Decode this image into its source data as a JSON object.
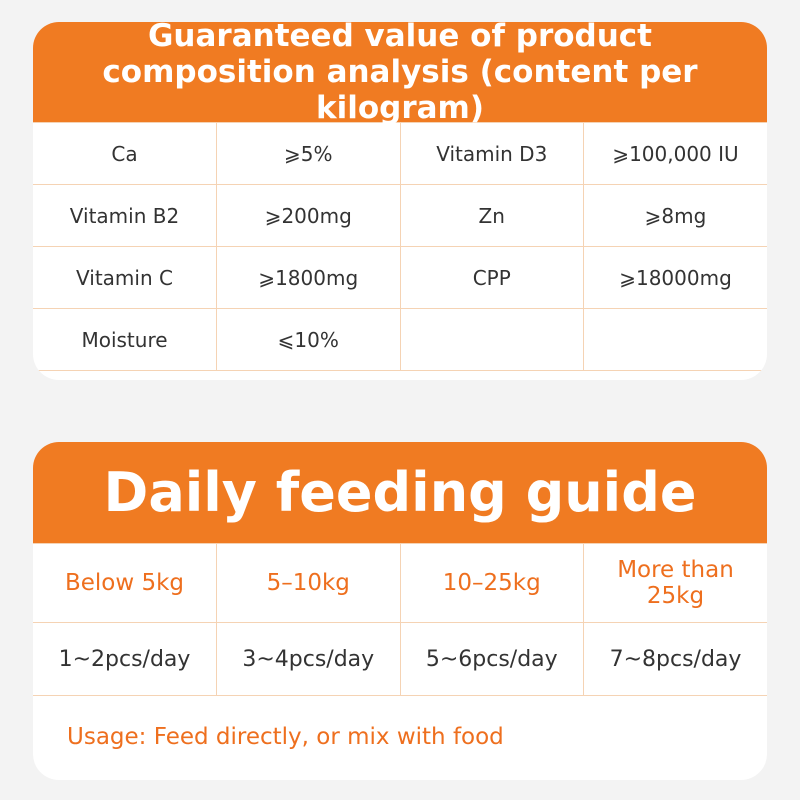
{
  "composition": {
    "title": "Guaranteed value of product composition analysis (content per kilogram)",
    "rows": [
      [
        "Ca",
        "⩾5%",
        "Vitamin D3",
        "⩾100,000 IU"
      ],
      [
        "Vitamin B2",
        "⩾200mg",
        "Zn",
        "⩾8mg"
      ],
      [
        "Vitamin C",
        "⩾1800mg",
        "CPP",
        "⩾18000mg"
      ],
      [
        "Moisture",
        "⩽10%"
      ]
    ]
  },
  "feeding": {
    "title": "Daily feeding guide",
    "header": [
      "Below 5kg",
      "5–10kg",
      "10–25kg",
      "More than 25kg"
    ],
    "rows": [
      [
        "1~2pcs/day",
        "3~4pcs/day",
        "5~6pcs/day",
        "7~8pcs/day"
      ]
    ],
    "usage": "Usage: Feed directly, or mix with food"
  }
}
